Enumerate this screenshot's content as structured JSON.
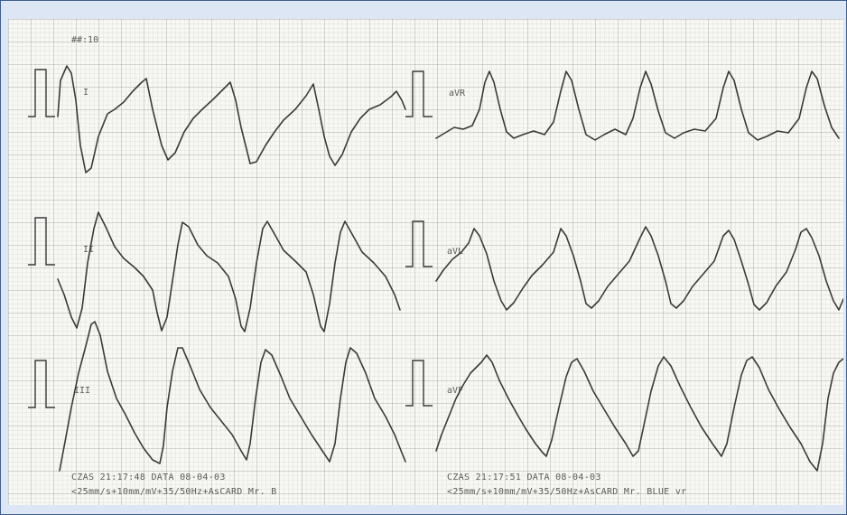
{
  "speed_label": "##:10",
  "leads": [
    {
      "label": "I"
    },
    {
      "label": "II"
    },
    {
      "label": "III"
    },
    {
      "label": "aVR"
    },
    {
      "label": "aVL"
    },
    {
      "label": "aVF"
    }
  ],
  "footer": {
    "left_line1": "CZAS 21:17:48 DATA 08-04-03",
    "left_line2": "<25mm/s+10mm/mV+35/50Hz+AsCARD Mr. B",
    "right_line1": "CZAS 21:17:51 DATA 08-04-03",
    "right_line2": "<25mm/s+10mm/mV+35/50Hz+AsCARD Mr. BLUE vr"
  }
}
